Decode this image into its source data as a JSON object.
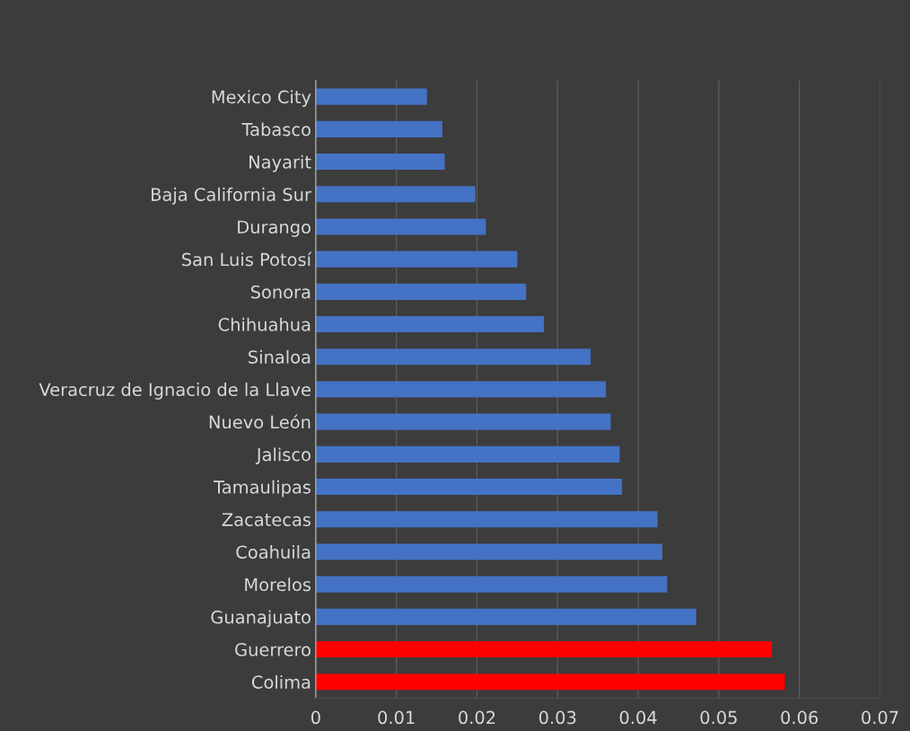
{
  "chart_data": {
    "type": "bar",
    "orientation": "horizontal",
    "categories": [
      "Mexico City",
      "Tabasco",
      "Nayarit",
      "Baja California Sur",
      "Durango",
      "San Luis Potosí",
      "Sonora",
      "Chihuahua",
      "Sinaloa",
      "Veracruz de Ignacio de la Llave",
      "Nuevo León",
      "Jalisco",
      "Tamaulipas",
      "Zacatecas",
      "Coahuila",
      "Morelos",
      "Guanajuato",
      "Guerrero",
      "Colima"
    ],
    "values": [
      0.0138,
      0.0157,
      0.016,
      0.0198,
      0.0211,
      0.025,
      0.0261,
      0.0283,
      0.0341,
      0.036,
      0.0366,
      0.0377,
      0.038,
      0.0424,
      0.043,
      0.0436,
      0.0472,
      0.0566,
      0.0582
    ],
    "colors": [
      "#4472c4",
      "#4472c4",
      "#4472c4",
      "#4472c4",
      "#4472c4",
      "#4472c4",
      "#4472c4",
      "#4472c4",
      "#4472c4",
      "#4472c4",
      "#4472c4",
      "#4472c4",
      "#4472c4",
      "#4472c4",
      "#4472c4",
      "#4472c4",
      "#4472c4",
      "#ff0000",
      "#ff0000"
    ],
    "xlim": [
      0,
      0.07
    ],
    "xticks": [
      0,
      0.01,
      0.02,
      0.03,
      0.04,
      0.05,
      0.06,
      0.07
    ],
    "grid": "x"
  }
}
